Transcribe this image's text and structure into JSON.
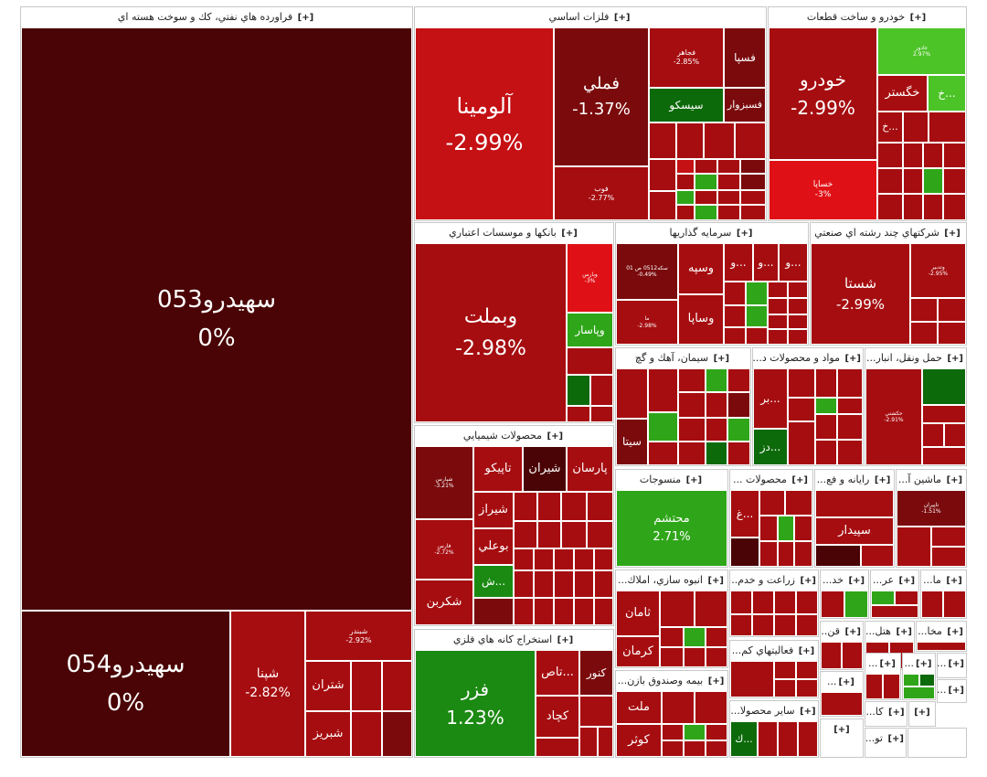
{
  "sectors": {
    "petroleum": {
      "title": "فراورده هاي نفتي، كك و سوخت هسته اي",
      "expand": "[+]",
      "s053": {
        "name": "سهيدرو053",
        "pct": "0%"
      },
      "s054": {
        "name": "سهيدرو054",
        "pct": "0%"
      },
      "shepna": {
        "name": "شپنا",
        "pct": "-2.82%"
      },
      "shebandar": {
        "name": "شبندر",
        "pct": "-2.92%"
      },
      "shetran": {
        "name": "شتران"
      },
      "shebriz": {
        "name": "شبريز"
      }
    },
    "metals": {
      "title": "فلزات اساسي",
      "expand": "[+]",
      "alumina": {
        "name": "آلومينا",
        "pct": "-2.99%"
      },
      "fameli": {
        "name": "فملي",
        "pct": "-1.37%"
      },
      "fajahr": {
        "name": "فجاهر",
        "pct": "-2.85%"
      },
      "fesepa": {
        "name": "فسپا"
      },
      "sisco": {
        "name": "سيسكو"
      },
      "fesabzevar": {
        "name": "فسبزوار"
      },
      "foulad": {
        "name": "فوب",
        "pct": "-2.77%"
      }
    },
    "auto": {
      "title": "خودرو و ساخت قطعات",
      "expand": "[+]",
      "khodro": {
        "name": "خودرو",
        "pct": "-2.99%"
      },
      "khegostar": {
        "name": "خگستر"
      },
      "khsapa": {
        "name": "خساپا",
        "pct": "-3%"
      },
      "small1": {
        "name": "خ..."
      },
      "small2": {
        "name": "خ..."
      },
      "top": {
        "name": "عادور",
        "pct": "2.97%"
      }
    },
    "banks": {
      "title": "بانكها و موسسات اعتباري",
      "expand": "[+]",
      "vebmelat": {
        "name": "وبملت",
        "pct": "-2.98%"
      },
      "vepasar": {
        "name": "وپاسار"
      },
      "small": {
        "name": "وبارس",
        "pct": "-3%"
      }
    },
    "investments": {
      "title": "سرمايه گذاريها",
      "expand": "[+]",
      "code": {
        "name": "سكه0512 ص 01",
        "pct": "-0.49%"
      },
      "vesepeh": {
        "name": "وسپه"
      },
      "vesapa": {
        "name": "وساپا"
      },
      "ma": {
        "name": "ما",
        "pct": "-2.98%"
      },
      "v1": {
        "name": "و..."
      },
      "v2": {
        "name": "و..."
      },
      "v3": {
        "name": "و..."
      }
    },
    "multi": {
      "title": "شركتهاي چند رشته اي صنعتي",
      "expand": "[+]",
      "shasta": {
        "name": "شستا",
        "pct": "-2.99%"
      },
      "vetadbir": {
        "name": "وتدبير",
        "pct": "-2.95%"
      }
    },
    "cement": {
      "title": "سيمان، آهك و گچ",
      "expand": "[+]",
      "sita": {
        "name": "سيتا"
      }
    },
    "materials": {
      "title": "مواد و محصولات د...",
      "expand": "[+]",
      "bar": {
        "name": "بر..."
      },
      "dez": {
        "name": "دز..."
      }
    },
    "transport": {
      "title": "حمل ونقل، انبار...",
      "expand": "[+]",
      "small": {
        "name": "حكشتي",
        "pct": "-2.91%"
      }
    },
    "chemicals": {
      "title": "محصولات شيميايي",
      "expand": "[+]",
      "parsan": {
        "name": "پارسان"
      },
      "shiran": {
        "name": "شيران"
      },
      "tapico": {
        "name": "تاپيكو"
      },
      "shiraz": {
        "name": "شيراز"
      },
      "booali": {
        "name": "بوعلي"
      },
      "shekarbon": {
        "name": "شكربن"
      },
      "sh": {
        "name": "ش..."
      },
      "shpars": {
        "name": "شپارس",
        "pct": "-3.21%"
      },
      "fars": {
        "name": "فارس",
        "pct": "-2.72%"
      }
    },
    "textiles": {
      "title": "منسوجات",
      "expand": "[+]",
      "mohtasham": {
        "name": "محتشم",
        "pct": "2.71%"
      }
    },
    "products": {
      "title": "محصولات ...",
      "expand": "[+]",
      "gh": {
        "name": "غ..."
      }
    },
    "computer": {
      "title": "رايانه و فع...",
      "expand": "[+]",
      "sepidar": {
        "name": "سپيدار"
      }
    },
    "machinery": {
      "title": "ماشين آ...",
      "expand": "[+]",
      "small": {
        "name": "تاپيران",
        "pct": "-1.51%"
      }
    },
    "construction": {
      "title": "انبوه سازي، املاك...",
      "expand": "[+]",
      "saman": {
        "name": "ثامان"
      },
      "kerman": {
        "name": "كرمان"
      }
    },
    "agriculture": {
      "title": "زراعت و خدم...",
      "expand": "[+]"
    },
    "finance": {
      "title": "فعاليتهاي كم...",
      "expand": "[+]"
    },
    "insurance": {
      "title": "بيمه وصندوق بازن...",
      "expand": "[+]",
      "melat": {
        "name": "ملت"
      },
      "kowsar": {
        "name": "كوثر"
      }
    },
    "other": {
      "title": "ساير محصولا...",
      "expand": "[+]",
      "k": {
        "name": "ك..."
      }
    },
    "mining": {
      "title": "استخراج كانه هاي فلزي",
      "expand": "[+]",
      "fazar": {
        "name": "فزر",
        "pct": "1.23%"
      },
      "tas": {
        "name": "تاص..."
      },
      "konvor": {
        "name": "كنور"
      },
      "kechad": {
        "name": "كچاد"
      }
    },
    "small": {
      "khad": {
        "title": "خد...",
        "expand": "[+]"
      },
      "ar": {
        "title": "عر...",
        "expand": "[+]"
      },
      "ma": {
        "title": "ما...",
        "expand": "[+]"
      },
      "ghan": {
        "title": "قن...",
        "expand": "[+]"
      },
      "hotel": {
        "title": "هتل...",
        "expand": "[+]"
      },
      "makha": {
        "title": "مخا...",
        "expand": "[+]"
      },
      "x1": {
        "title": "...",
        "expand": "[+]"
      },
      "x2": {
        "title": "...",
        "expand": "[+]"
      },
      "x3": {
        "title": "...",
        "expand": "[+]"
      },
      "ka": {
        "title": "كا...",
        "expand": "[+]"
      },
      "x4": {
        "title": "...",
        "expand": "[+]"
      },
      "too": {
        "title": "تو...",
        "expand": "[+]"
      },
      "x5": {
        "title": "",
        "expand": "[+]"
      },
      "x6": {
        "title": "...",
        "expand": "[+]"
      },
      "x7": {
        "title": "",
        "expand": "[+]"
      }
    }
  },
  "colors": {
    "dark_red": "#4a0405",
    "red": "#a60d10",
    "bright_red": "#e01116",
    "green": "#2fa619",
    "dark_green": "#0d6a0a"
  }
}
